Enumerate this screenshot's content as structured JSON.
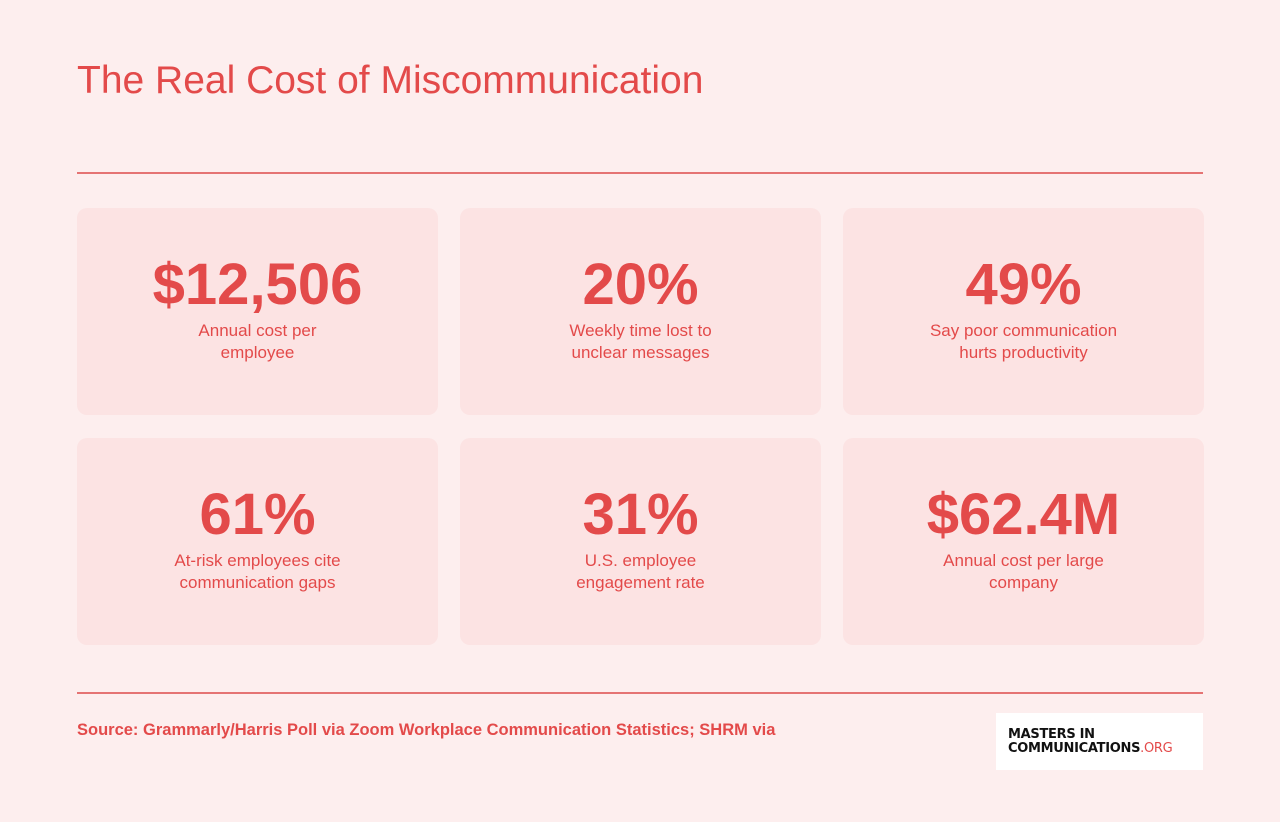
{
  "title": "The Real Cost of Miscommunication",
  "colors": {
    "background": "#fdeeee",
    "card": "#fce3e3",
    "accent": "#e34a4a",
    "rule": "#e57373",
    "logo_background": "#ffffff",
    "logo_text": "#111111"
  },
  "stats": [
    {
      "value": "$12,506",
      "label_line1": "Annual cost per",
      "label_line2": "employee"
    },
    {
      "value": "20%",
      "label_line1": "Weekly time lost to",
      "label_line2": "unclear messages"
    },
    {
      "value": "49%",
      "label_line1": "Say poor communication",
      "label_line2": "hurts productivity"
    },
    {
      "value": "61%",
      "label_line1": "At-risk employees cite",
      "label_line2": "communication gaps"
    },
    {
      "value": "31%",
      "label_line1": "U.S. employee",
      "label_line2": "engagement rate"
    },
    {
      "value": "$62.4M",
      "label_line1": "Annual cost per large",
      "label_line2": "company"
    }
  ],
  "source": "Source: Grammarly/Harris Poll via Zoom Workplace Communication Statistics; SHRM via",
  "logo": {
    "line1": "MASTERS IN",
    "line2_main": "COMMUNICATIONS",
    "line2_suffix": ".ORG"
  }
}
